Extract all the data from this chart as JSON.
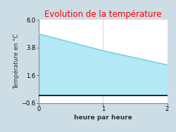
{
  "title": "Evolution de la température",
  "title_color": "#ff0000",
  "xlabel": "heure par heure",
  "ylabel": "Température en °C",
  "x_values": [
    0,
    1,
    2
  ],
  "y_values": [
    4.88,
    3.55,
    2.42
  ],
  "ylim": [
    -0.6,
    6.0
  ],
  "xlim": [
    0,
    2
  ],
  "yticks": [
    -0.6,
    1.6,
    3.8,
    6.0
  ],
  "xticks": [
    0,
    1,
    2
  ],
  "line_color": "#62cde0",
  "fill_color": "#b3e8f5",
  "fill_alpha": 1.0,
  "outer_bg_color": "#cddde6",
  "plot_bg_color": "#ffffff",
  "grid_color": "#cccccc",
  "baseline": 0,
  "title_fontsize": 8.5,
  "label_fontsize": 6.5,
  "tick_fontsize": 6.0
}
